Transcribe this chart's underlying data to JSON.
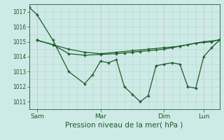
{
  "background_color": "#ceeae6",
  "grid_color_v": "#d4b8b8",
  "grid_color_h": "#b8d8d4",
  "line_color": "#1a5c28",
  "title": "Pression niveau de la mer( hPa )",
  "ylim": [
    1010.5,
    1017.5
  ],
  "yticks": [
    1011,
    1012,
    1013,
    1014,
    1015,
    1016,
    1017
  ],
  "xtick_labels": [
    "Sam",
    "Mar",
    "Dim",
    "Lun"
  ],
  "xtick_positions": [
    2,
    18,
    34,
    44
  ],
  "total_points": 48,
  "series1_x": [
    0,
    2,
    6,
    10,
    14,
    16,
    18,
    20,
    22,
    24,
    26,
    28,
    30,
    32,
    34,
    36,
    38,
    40,
    42,
    44,
    46,
    48
  ],
  "series1_y": [
    1017.3,
    1016.8,
    1015.1,
    1013.0,
    1012.2,
    1012.8,
    1013.7,
    1013.6,
    1013.8,
    1012.0,
    1011.5,
    1011.0,
    1011.4,
    1013.4,
    1013.5,
    1013.6,
    1013.5,
    1012.0,
    1011.9,
    1014.0,
    1014.6,
    1015.1
  ],
  "series2_x": [
    2,
    6,
    10,
    14,
    18,
    22,
    24,
    26,
    28,
    30,
    32,
    34,
    36,
    38,
    40,
    44,
    48
  ],
  "series2_y": [
    1015.1,
    1014.8,
    1014.2,
    1014.1,
    1014.15,
    1014.2,
    1014.25,
    1014.3,
    1014.35,
    1014.4,
    1014.45,
    1014.5,
    1014.6,
    1014.7,
    1014.8,
    1015.0,
    1015.1
  ],
  "series3_x": [
    2,
    6,
    10,
    14,
    18,
    22,
    26,
    30,
    34,
    38,
    42,
    46,
    48
  ],
  "series3_y": [
    1015.1,
    1014.8,
    1014.5,
    1014.3,
    1014.2,
    1014.3,
    1014.4,
    1014.5,
    1014.6,
    1014.7,
    1014.9,
    1015.0,
    1015.15
  ]
}
